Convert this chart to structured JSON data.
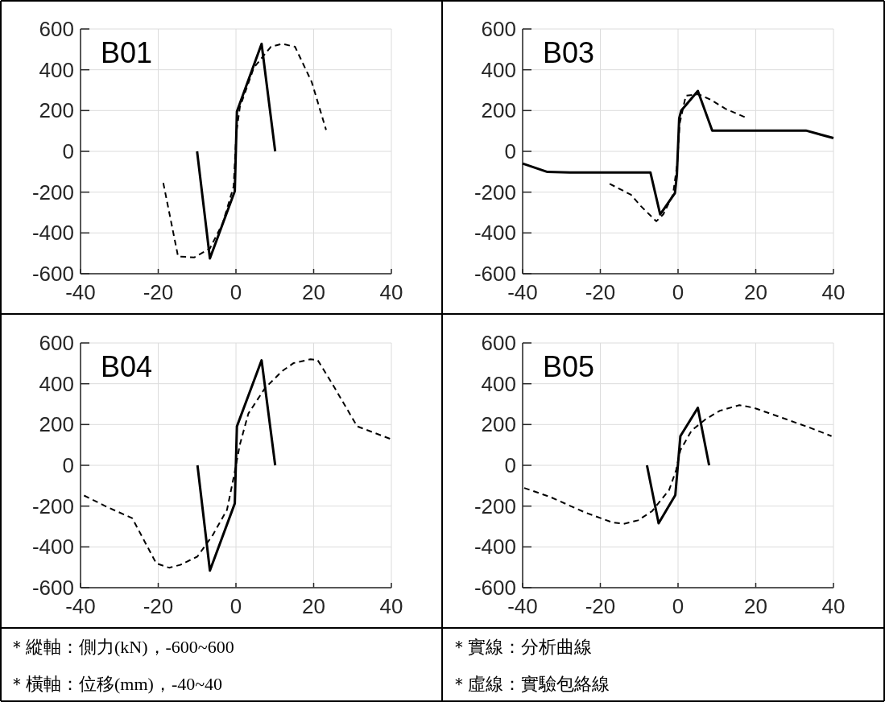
{
  "chart_data": [
    {
      "type": "line",
      "title": "B01",
      "xlim": [
        -40,
        40
      ],
      "ylim": [
        -600,
        600
      ],
      "xticks": [
        -40,
        -20,
        0,
        20,
        40
      ],
      "yticks": [
        -600,
        -400,
        -200,
        0,
        200,
        400,
        600
      ],
      "grid": true,
      "series": [
        {
          "color": "#000000",
          "line_style": "solid",
          "x": [
            -10,
            -6.7,
            -0.3,
            0.25,
            6.6,
            10.1
          ],
          "values": [
            0,
            -525,
            -195,
            195,
            527,
            0
          ]
        },
        {
          "color": "#000000",
          "line_style": "dashed",
          "x": [
            -18.7,
            -14.9,
            -10.7,
            -6.7,
            -3.4,
            -0.6,
            0.1,
            1.0,
            4.6,
            9.0,
            11.9,
            15.2,
            19.5,
            23.2
          ],
          "values": [
            -155,
            -515,
            -520,
            -476,
            -352,
            -172,
            91,
            216,
            410,
            513,
            527,
            513,
            340,
            105
          ]
        }
      ]
    },
    {
      "type": "line",
      "title": "B03",
      "xlim": [
        -40,
        40
      ],
      "ylim": [
        -600,
        600
      ],
      "xticks": [
        -40,
        -20,
        0,
        20,
        40
      ],
      "yticks": [
        -600,
        -400,
        -200,
        0,
        200,
        400,
        600
      ],
      "grid": true,
      "series": [
        {
          "color": "#000000",
          "line_style": "solid",
          "x": [
            -40,
            -33.6,
            -27.8,
            -7.1,
            -4.6,
            -0.8,
            -0.3,
            0.3,
            0.8,
            5.1,
            8.8,
            32.9,
            40
          ],
          "values": [
            -60,
            -101,
            -104,
            -104,
            -309,
            -205,
            -115,
            162,
            199,
            296,
            102,
            102,
            65
          ]
        },
        {
          "color": "#000000",
          "line_style": "dashed",
          "x": [
            -17.6,
            -12.1,
            -9.6,
            -5.6,
            -3.8,
            -1.3,
            -0.2,
            0.4,
            2.0,
            5.3,
            8.5,
            12.2,
            17.2
          ],
          "values": [
            -159,
            -213,
            -268,
            -343,
            -309,
            -212,
            -60,
            134,
            273,
            280,
            252,
            209,
            168
          ]
        }
      ]
    },
    {
      "type": "line",
      "title": "B04",
      "xlim": [
        -40,
        40
      ],
      "ylim": [
        -600,
        600
      ],
      "xticks": [
        -40,
        -20,
        0,
        20,
        40
      ],
      "yticks": [
        -600,
        -400,
        -200,
        0,
        200,
        400,
        600
      ],
      "grid": true,
      "series": [
        {
          "color": "#000000",
          "line_style": "solid",
          "x": [
            -9.9,
            -6.7,
            -0.3,
            0.25,
            6.6,
            10.1
          ],
          "values": [
            0,
            -516,
            -187,
            191,
            515,
            0
          ]
        },
        {
          "color": "#000000",
          "line_style": "dashed",
          "x": [
            -39.1,
            -33.2,
            -26.7,
            -20.5,
            -17.2,
            -14.3,
            -9.9,
            -6.0,
            -2.3,
            -0.5,
            1.0,
            3.2,
            7.5,
            11.9,
            14.8,
            19.2,
            21.0,
            25.0,
            31.2,
            39.8
          ],
          "values": [
            -148,
            -204,
            -259,
            -481,
            -502,
            -488,
            -447,
            -343,
            -218,
            -51,
            101,
            254,
            379,
            462,
            501,
            520,
            517,
            393,
            191,
            129
          ]
        }
      ]
    },
    {
      "type": "line",
      "title": "B05",
      "xlim": [
        -40,
        40
      ],
      "ylim": [
        -600,
        600
      ],
      "xticks": [
        -40,
        -20,
        0,
        20,
        40
      ],
      "yticks": [
        -600,
        -400,
        -200,
        0,
        200,
        400,
        600
      ],
      "grid": true,
      "series": [
        {
          "color": "#000000",
          "line_style": "solid",
          "x": [
            -8.0,
            -5.0,
            -0.7,
            0.6,
            5.1,
            8.0
          ],
          "values": [
            0,
            -284,
            -146,
            143,
            282,
            0
          ]
        },
        {
          "color": "#000000",
          "line_style": "dashed",
          "x": [
            -39.6,
            -32.9,
            -24.2,
            -16.9,
            -14.0,
            -10.3,
            -6.7,
            -2.3,
            -0.5,
            0.6,
            3.5,
            7.1,
            10.8,
            15.8,
            19.5,
            26.8,
            34.0,
            39.5
          ],
          "values": [
            -111,
            -155,
            -229,
            -280,
            -287,
            -270,
            -225,
            -121,
            -24,
            74,
            171,
            226,
            268,
            295,
            282,
            233,
            184,
            143
          ]
        }
      ]
    },
    {
      "type": "other",
      "annotations": [
        "＊縱軸：側力(kN)，-600~600",
        "＊橫軸：位移(mm)，-40~40"
      ]
    },
    {
      "type": "other",
      "annotations": [
        "＊實線：分析曲線",
        "＊虛線：實驗包絡線"
      ]
    }
  ]
}
